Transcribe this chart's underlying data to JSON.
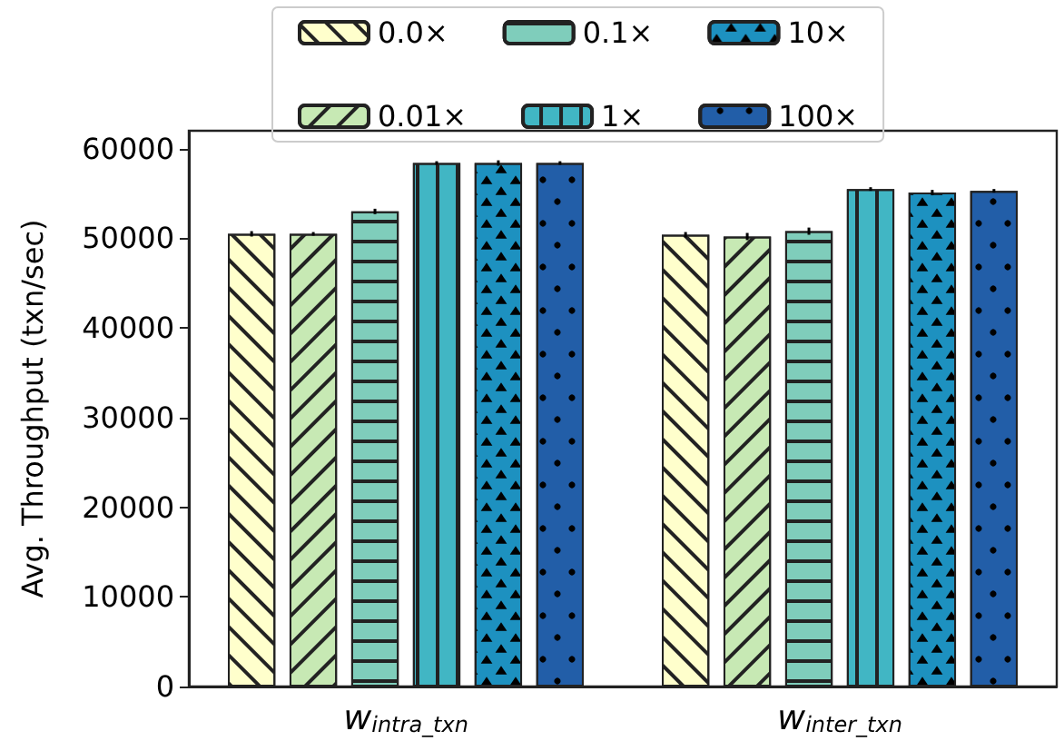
{
  "chart_data": {
    "type": "bar",
    "ylabel": "Avg. Throughput (txn/sec)",
    "categories": [
      "w$_{intra_txn}$",
      "w$_{inter_txn}$"
    ],
    "ylim": [
      0,
      62000
    ],
    "yticks": [
      0,
      10000,
      20000,
      30000,
      40000,
      50000,
      60000
    ],
    "grid": false,
    "legend": "top",
    "series": [
      {
        "name": "0.0×",
        "color": "#ffffcc",
        "values": [
          50500,
          50400
        ],
        "errors": [
          300,
          300
        ]
      },
      {
        "name": "0.01×",
        "color": "#c7e9b4",
        "values": [
          50500,
          50200
        ],
        "errors": [
          200,
          400
        ]
      },
      {
        "name": "0.1×",
        "color": "#7fcdbb",
        "values": [
          53000,
          50800
        ],
        "errors": [
          300,
          400
        ]
      },
      {
        "name": "1×",
        "color": "#41b6c4",
        "values": [
          58400,
          55500
        ],
        "errors": [
          200,
          200
        ]
      },
      {
        "name": "10×",
        "color": "#1d91c0",
        "values": [
          58400,
          55100
        ],
        "errors": [
          300,
          300
        ]
      },
      {
        "name": "100×",
        "color": "#225ea8",
        "values": [
          58400,
          55300
        ],
        "errors": [
          200,
          200
        ]
      }
    ]
  }
}
